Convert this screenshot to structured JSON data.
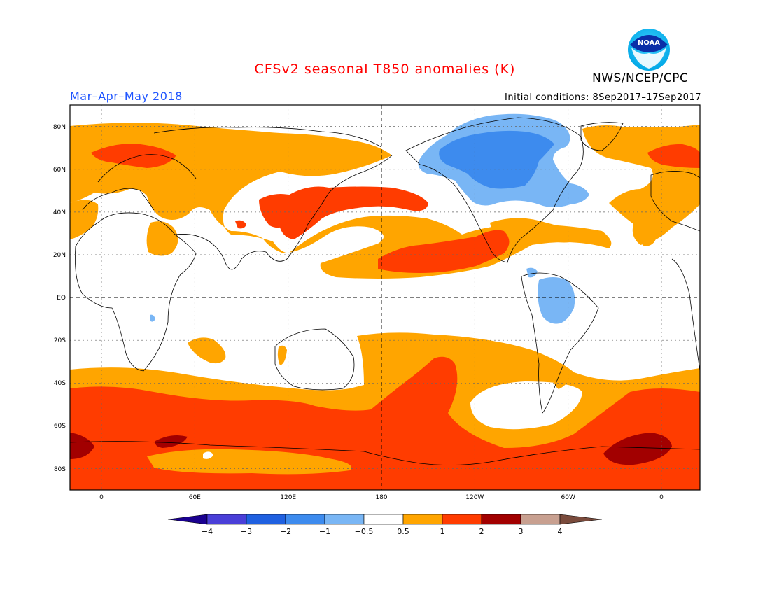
{
  "header": {
    "title": "CFSv2 seasonal T850 anomalies (K)",
    "season": "Mar–Apr–May 2018",
    "initial_conditions": "Initial conditions: 8Sep2017–17Sep2017",
    "org": "NWS/NCEP/CPC",
    "logo_text": "NOAA"
  },
  "map": {
    "lat_labels": [
      "80N",
      "60N",
      "40N",
      "20N",
      "EQ",
      "20S",
      "40S",
      "60S",
      "80S"
    ],
    "lon_labels": [
      "0",
      "60E",
      "120E",
      "180",
      "120W",
      "60W",
      "0"
    ]
  },
  "colorbar": {
    "labels": [
      "−4",
      "−3",
      "−2",
      "−1",
      "−0.5",
      "0.5",
      "1",
      "2",
      "3",
      "4"
    ],
    "colors": [
      "#1a0090",
      "#4a3fd8",
      "#1f60e0",
      "#3d8bee",
      "#79b6f5",
      "#ffffff",
      "#ffa500",
      "#ff3c00",
      "#a20000",
      "#c8a090",
      "#7a4b3c"
    ]
  },
  "colors": {
    "title": "#ff0000",
    "season": "#1f55ff",
    "anomaly_0_5_to_1": "#ffa500",
    "anomaly_1_to_2": "#ff3c00",
    "anomaly_2_to_3": "#a20000",
    "anomaly_neg_1_to_neg_0_5": "#79b6f5",
    "anomaly_neg_2_to_neg_1": "#3d8bee"
  }
}
